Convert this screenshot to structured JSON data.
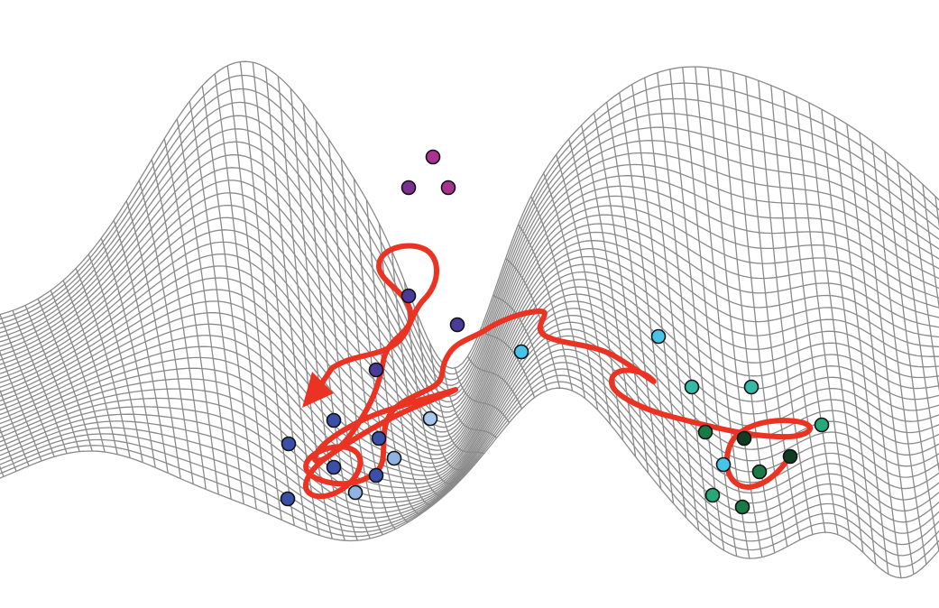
{
  "figure": {
    "mesh_color": "#8a8a8a",
    "trajectory_color": "#ea3323",
    "point_outline_color": "#111111",
    "point_groups": [
      {
        "group": "top-basin",
        "colors": [
          "#7b2f8e",
          "#a8328f"
        ]
      },
      {
        "group": "left-basin",
        "colors": [
          "#3b4fa8",
          "#4a3a9a",
          "#a6c8ee",
          "#8fb4e3"
        ]
      },
      {
        "group": "right-basin",
        "colors": [
          "#46c4ea",
          "#37b9a8",
          "#27a87a",
          "#1a7a45",
          "#0f3d22"
        ]
      }
    ]
  }
}
